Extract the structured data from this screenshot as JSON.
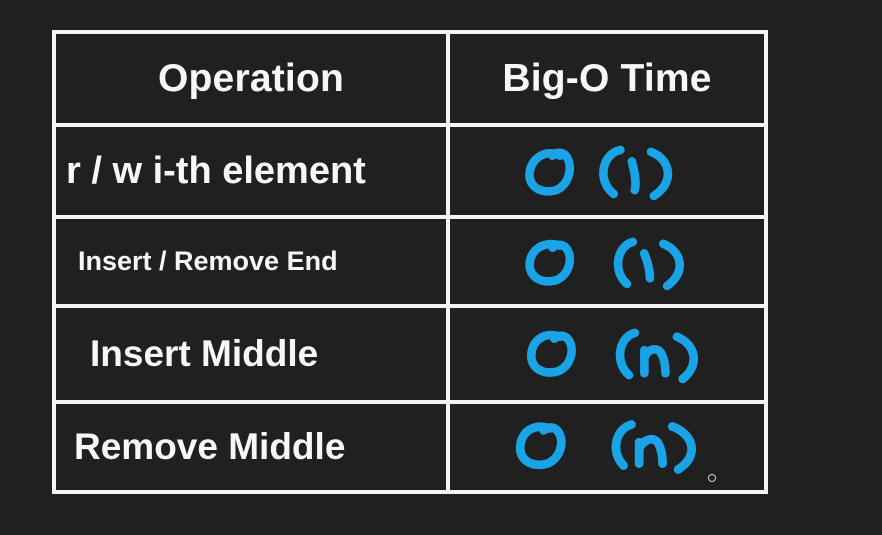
{
  "table": {
    "headers": {
      "operation": "Operation",
      "time": "Big-O Time"
    },
    "rows": [
      {
        "operation": "r / w i-th element",
        "complexity": "O(1)"
      },
      {
        "operation": "Insert / Remove End",
        "complexity": "O(1)"
      },
      {
        "operation": "Insert Middle",
        "complexity": "O(n)"
      },
      {
        "operation": "Remove Middle",
        "complexity": "O(n)"
      }
    ]
  },
  "colors": {
    "background": "#202020",
    "border": "#f4f4f4",
    "text": "#f7f7f7",
    "ink": "#1aa3e6"
  }
}
